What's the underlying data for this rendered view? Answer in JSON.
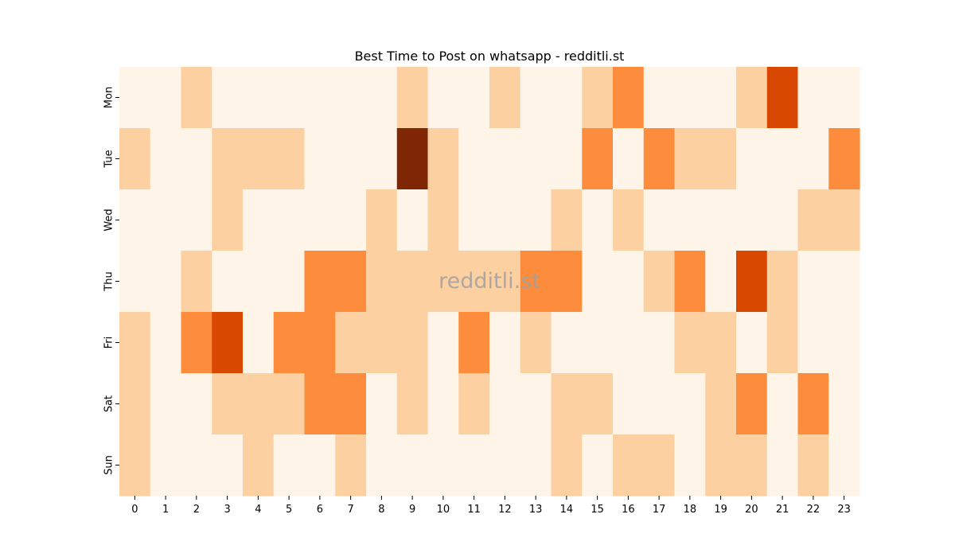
{
  "watermark": "redditli.st",
  "chart_data": {
    "type": "heatmap",
    "title": "Best Time to Post on whatsapp - redditli.st",
    "xlabel": "",
    "ylabel": "",
    "x_categories": [
      "0",
      "1",
      "2",
      "3",
      "4",
      "5",
      "6",
      "7",
      "8",
      "9",
      "10",
      "11",
      "12",
      "13",
      "14",
      "15",
      "16",
      "17",
      "18",
      "19",
      "20",
      "21",
      "22",
      "23"
    ],
    "y_categories": [
      "Mon",
      "Tue",
      "Wed",
      "Thu",
      "Fri",
      "Sat",
      "Sun"
    ],
    "levels": [
      0,
      1,
      2,
      3,
      4
    ],
    "level_colors": [
      "#fff4e8",
      "#fdd0a2",
      "#fd8d3c",
      "#d94801",
      "#7f2704"
    ],
    "values": [
      [
        0,
        0,
        1,
        0,
        0,
        0,
        0,
        0,
        0,
        1,
        0,
        0,
        1,
        0,
        0,
        1,
        2,
        0,
        0,
        0,
        1,
        3,
        0,
        0
      ],
      [
        1,
        0,
        0,
        1,
        1,
        1,
        0,
        0,
        0,
        4,
        1,
        0,
        0,
        0,
        0,
        2,
        0,
        2,
        1,
        1,
        0,
        0,
        0,
        2
      ],
      [
        0,
        0,
        0,
        1,
        0,
        0,
        0,
        0,
        1,
        0,
        1,
        0,
        0,
        0,
        1,
        0,
        1,
        0,
        0,
        0,
        0,
        0,
        1,
        1
      ],
      [
        0,
        0,
        1,
        0,
        0,
        0,
        2,
        2,
        1,
        1,
        1,
        1,
        1,
        2,
        2,
        0,
        0,
        1,
        2,
        0,
        3,
        1,
        0,
        0
      ],
      [
        1,
        0,
        2,
        3,
        0,
        2,
        2,
        1,
        1,
        1,
        0,
        2,
        0,
        1,
        0,
        0,
        0,
        0,
        1,
        1,
        0,
        1,
        0,
        0
      ],
      [
        1,
        0,
        0,
        1,
        1,
        1,
        2,
        2,
        0,
        1,
        0,
        1,
        0,
        0,
        1,
        1,
        0,
        0,
        0,
        1,
        2,
        0,
        2,
        0
      ],
      [
        1,
        0,
        0,
        0,
        1,
        0,
        0,
        1,
        0,
        0,
        0,
        0,
        0,
        0,
        1,
        0,
        1,
        1,
        0,
        1,
        1,
        0,
        1,
        0
      ]
    ]
  }
}
